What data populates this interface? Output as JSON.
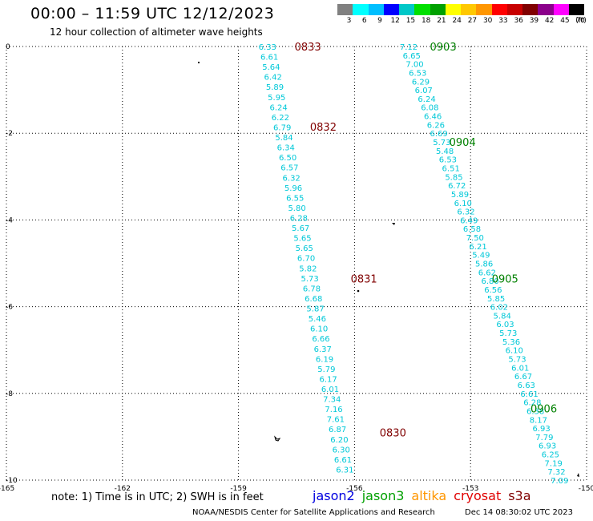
{
  "header": {
    "title": "00:00 – 11:59 UTC 12/12/2023",
    "subtitle": "12 hour collection of altimeter wave heights"
  },
  "colorbar": {
    "labels": [
      "3",
      "6",
      "9",
      "12",
      "15",
      "18",
      "21",
      "24",
      "27",
      "30",
      "33",
      "36",
      "39",
      "42",
      "45",
      "70"
    ],
    "unit": "(ft)",
    "colors": [
      "#808080",
      "#00ffff",
      "#00bfff",
      "#0000ff",
      "#00c8c8",
      "#00e000",
      "#00a000",
      "#ffff00",
      "#ffc800",
      "#ff9600",
      "#ff0000",
      "#c80000",
      "#800000",
      "#8b008b",
      "#ff00ff",
      "#000000"
    ]
  },
  "chart_data": {
    "type": "scatter",
    "xlim": [
      -165,
      -150
    ],
    "ylim": [
      -10,
      0
    ],
    "x_ticks": [
      "-165",
      "-162",
      "-159",
      "-156",
      "-153",
      "-150"
    ],
    "y_ticks": [
      "0",
      "-2",
      "-4",
      "-6",
      "-8",
      "-10"
    ],
    "grid": true,
    "tracks": [
      {
        "name": "west",
        "value_color": "#00c8d8",
        "time_color": "#800000",
        "start": [
          -158.25,
          0.0
        ],
        "end": [
          -156.25,
          -9.75
        ],
        "values": [
          "6.33",
          "6.61",
          "5.64",
          "6.42",
          "5.89",
          "5.95",
          "6.24",
          "6.22",
          "6.79",
          "5.84",
          "6.34",
          "6.50",
          "6.57",
          "6.32",
          "5.96",
          "6.55",
          "5.80",
          "6.28",
          "5.67",
          "5.65",
          "5.65",
          "6.70",
          "5.82",
          "5.73",
          "6.78",
          "6.68",
          "5.87",
          "5.46",
          "6.10",
          "6.66",
          "6.37",
          "6.19",
          "5.79",
          "6.17",
          "6.01",
          "7.34",
          "7.16",
          "7.61",
          "6.87",
          "6.20",
          "6.30",
          "6.61",
          "6.31"
        ],
        "times": [
          {
            "label": "0833",
            "x": -157.55,
            "y": 0.0
          },
          {
            "label": "0832",
            "x": -157.15,
            "y": -1.85
          },
          {
            "label": "0831",
            "x": -156.1,
            "y": -5.35
          },
          {
            "label": "0830",
            "x": -155.35,
            "y": -8.9
          }
        ]
      },
      {
        "name": "east",
        "value_color": "#00c8d8",
        "time_color": "#008000",
        "start": [
          -154.6,
          0.0
        ],
        "end": [
          -150.7,
          -10.0
        ],
        "values": [
          "7.12",
          "6.65",
          "7.00",
          "6.53",
          "6.29",
          "6.07",
          "6.24",
          "6.08",
          "6.46",
          "6.26",
          "6.69",
          "5.73",
          "5.48",
          "6.53",
          "6.51",
          "5.85",
          "6.72",
          "5.89",
          "6.10",
          "6.32",
          "6.49",
          "6.58",
          "7.50",
          "6.21",
          "5.49",
          "5.86",
          "6.62",
          "6.80",
          "6.56",
          "5.85",
          "6.02",
          "5.84",
          "6.03",
          "5.73",
          "5.36",
          "6.10",
          "5.73",
          "6.01",
          "6.67",
          "6.63",
          "6.61",
          "6.28",
          "6.38",
          "8.17",
          "6.93",
          "7.79",
          "6.93",
          "6.25",
          "7.19",
          "7.32",
          "7.09"
        ],
        "times": [
          {
            "label": "0903",
            "x": -154.05,
            "y": 0.0
          },
          {
            "label": "0904",
            "x": -153.55,
            "y": -2.2
          },
          {
            "label": "0905",
            "x": -152.45,
            "y": -5.35
          },
          {
            "label": "0906",
            "x": -151.45,
            "y": -8.35
          }
        ]
      }
    ]
  },
  "footer": {
    "note": "note:  1) Time is in UTC;  2) SWH is in feet",
    "missions": [
      {
        "name": "jason2",
        "color": "#0000e0"
      },
      {
        "name": "jason3",
        "color": "#00a000"
      },
      {
        "name": "altika",
        "color": "#ff9600"
      },
      {
        "name": "cryosat",
        "color": "#e00000"
      },
      {
        "name": "s3a",
        "color": "#800000"
      }
    ],
    "credit": "NOAA/NESDIS Center for Satellite Applications and Research",
    "generated": "Dec 14 08:30:02 UTC 2023"
  }
}
